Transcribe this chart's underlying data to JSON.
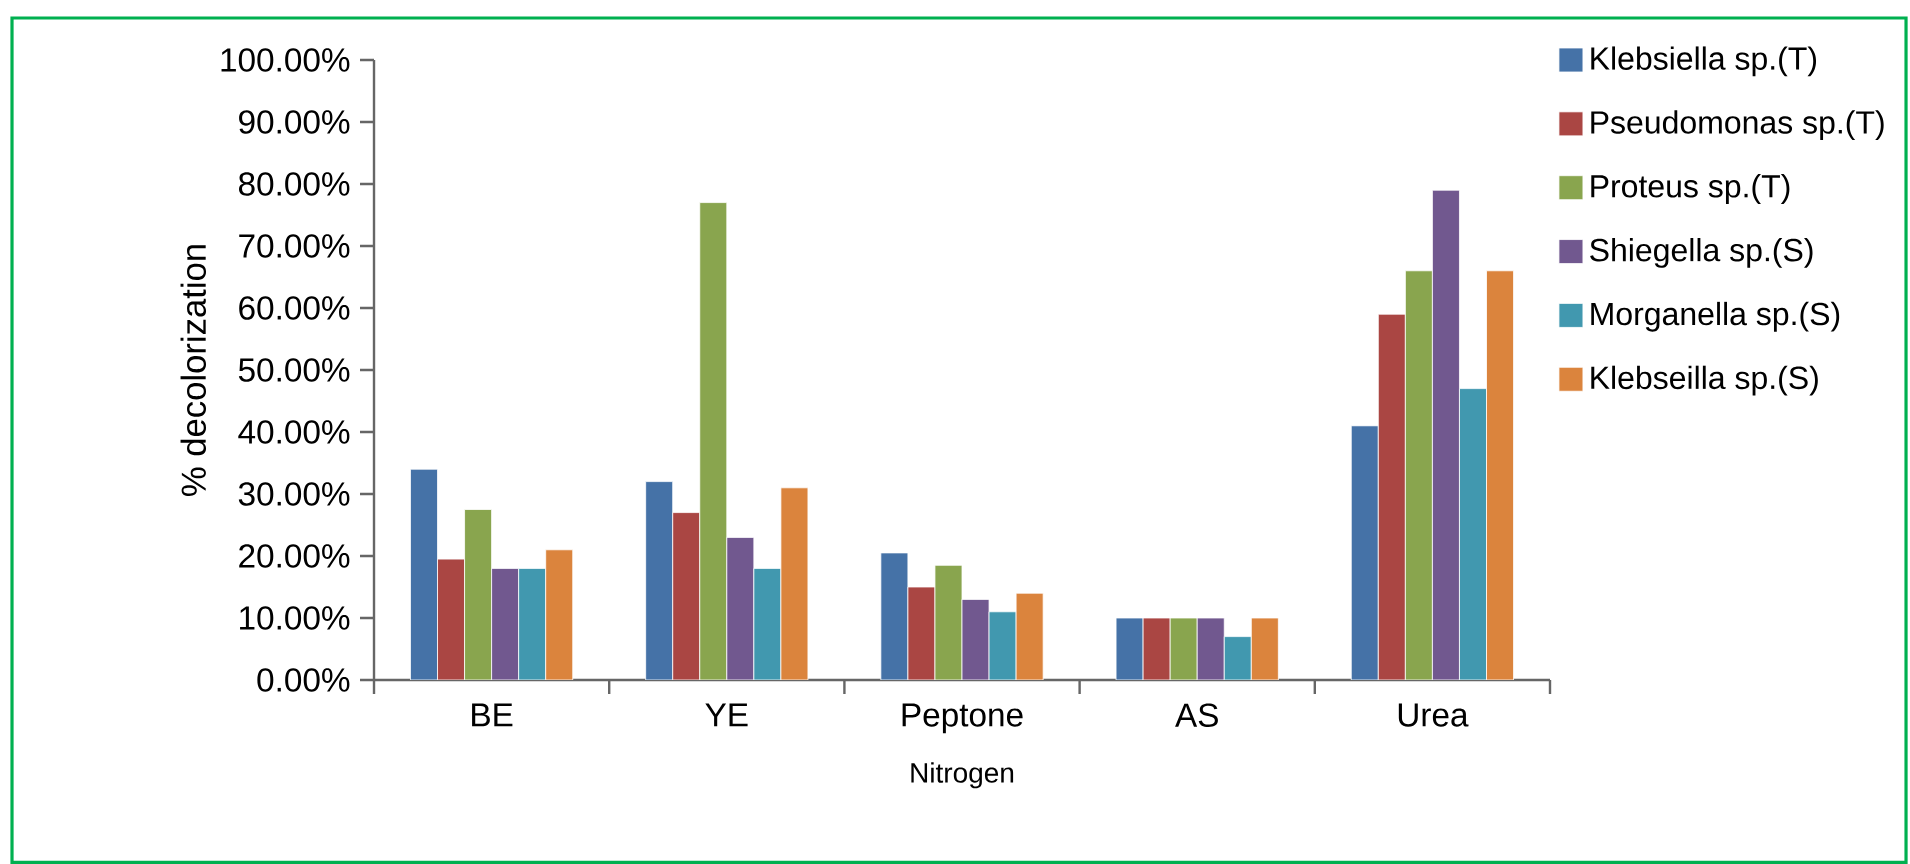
{
  "chart_data": {
    "type": "bar",
    "xlabel": "Nitrogen",
    "ylabel": "% decolorization",
    "categories": [
      "BE",
      "YE",
      "Peptone",
      "AS",
      "Urea"
    ],
    "series": [
      {
        "name": "Klebsiella sp.(T)",
        "color": "#4572a7",
        "values": [
          34,
          32,
          20.5,
          10,
          41
        ]
      },
      {
        "name": "Pseudomonas sp.(T)",
        "color": "#aa4643",
        "values": [
          19.5,
          27,
          15,
          10,
          59
        ]
      },
      {
        "name": "Proteus sp.(T)",
        "color": "#89a54e",
        "values": [
          27.5,
          77,
          18.5,
          10,
          66
        ]
      },
      {
        "name": "Shiegella sp.(S)",
        "color": "#71588f",
        "values": [
          18,
          23,
          13,
          10,
          79
        ]
      },
      {
        "name": "Morganella sp.(S)",
        "color": "#4198af",
        "values": [
          18,
          18,
          11,
          7,
          47
        ]
      },
      {
        "name": "Klebseilla sp.(S)",
        "color": "#db843d",
        "values": [
          21,
          31,
          14,
          10,
          66
        ]
      }
    ],
    "ylim": [
      0,
      100
    ],
    "yticks": [
      {
        "value": 0,
        "label": "0.00%"
      },
      {
        "value": 10,
        "label": "10.00%"
      },
      {
        "value": 20,
        "label": "20.00%"
      },
      {
        "value": 30,
        "label": "30.00%"
      },
      {
        "value": 40,
        "label": "40.00%"
      },
      {
        "value": 50,
        "label": "50.00%"
      },
      {
        "value": 60,
        "label": "60.00%"
      },
      {
        "value": 70,
        "label": "70.00%"
      },
      {
        "value": 80,
        "label": "80.00%"
      },
      {
        "value": 90,
        "label": "90.00%"
      },
      {
        "value": 100,
        "label": "100.00%"
      }
    ],
    "grid": false,
    "legend": "right"
  }
}
